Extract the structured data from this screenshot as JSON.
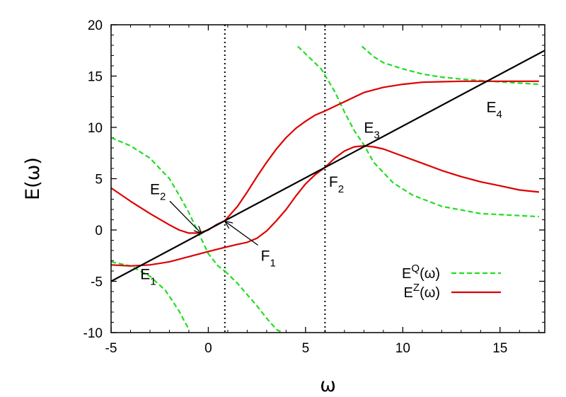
{
  "chart_data": {
    "type": "line",
    "xlabel": "ω",
    "ylabel": "E(ω)",
    "xlim": [
      -5,
      17.3
    ],
    "ylim": [
      -10,
      20
    ],
    "x_ticks": [
      -5,
      0,
      5,
      10,
      15
    ],
    "y_ticks": [
      -10,
      -5,
      0,
      5,
      10,
      15,
      20
    ],
    "grid": false,
    "legend_position": "bottom-right",
    "colors": {
      "EQ": "#22dd22",
      "EZ": "#dd0000",
      "diagonal": "#000000",
      "vlines": "#000000"
    },
    "vertical_lines": [
      0.85,
      6.0
    ],
    "series": [
      {
        "name": "E^Q(ω)",
        "legend": {
          "base": "E",
          "sup": "Q",
          "arg": "(ω)"
        },
        "style": "dashed",
        "color": "#22dd22",
        "branches": [
          {
            "x": [
              -5,
              -4,
              -3,
              -2,
              -1.5,
              -1,
              -0.5,
              0,
              0.5,
              0.85
            ],
            "y": [
              9.0,
              8.2,
              7.0,
              5.0,
              3.4,
              1.7,
              -0.3,
              -2.3,
              -3.5,
              -4.0
            ]
          },
          {
            "x": [
              0.85,
              1.5,
              2,
              2.5,
              3,
              3.5,
              3.8
            ],
            "y": [
              -4.0,
              -5.2,
              -6.3,
              -7.4,
              -8.6,
              -9.7,
              -10.0
            ]
          },
          {
            "x": [
              -5,
              -4,
              -3,
              -2.2,
              -1.5,
              -1.2,
              -1.05
            ],
            "y": [
              -3.1,
              -3.5,
              -4.5,
              -5.9,
              -7.9,
              -9.0,
              -9.5
            ]
          },
          {
            "x": [
              4.6,
              5.2,
              5.8,
              6.5,
              7,
              7.5,
              8,
              8.5,
              9.5,
              10.5,
              12,
              14,
              17
            ],
            "y": [
              17.9,
              16.8,
              15.7,
              13.5,
              11.5,
              9.7,
              8.3,
              6.6,
              4.6,
              3.4,
              2.3,
              1.6,
              1.3
            ]
          },
          {
            "x": [
              7.9,
              8.5,
              9,
              10,
              11,
              12,
              13,
              14.5,
              17
            ],
            "y": [
              17.9,
              16.9,
              16.3,
              15.7,
              15.2,
              14.9,
              14.7,
              14.5,
              14.2
            ]
          }
        ]
      },
      {
        "name": "E^Z(ω)",
        "legend": {
          "base": "E",
          "sup": "Z",
          "arg": "(ω)"
        },
        "style": "solid",
        "color": "#dd0000",
        "branches": [
          {
            "x": [
              -5,
              -4,
              -3,
              -2,
              -1.5,
              -1,
              -0.5,
              0,
              0.4,
              0.85,
              1.5,
              2,
              2.5,
              3,
              3.5,
              4,
              4.5,
              5,
              5.5,
              6,
              7,
              8,
              9,
              10,
              11,
              12,
              13,
              14,
              15,
              16,
              17
            ],
            "y": [
              4.1,
              2.8,
              1.6,
              0.5,
              0.0,
              -0.3,
              -0.3,
              0.0,
              0.5,
              0.9,
              2.3,
              3.7,
              5.2,
              6.6,
              7.9,
              9.0,
              9.9,
              10.6,
              11.2,
              11.6,
              12.5,
              13.4,
              13.9,
              14.2,
              14.4,
              14.45,
              14.5,
              14.5,
              14.5,
              14.5,
              14.5
            ]
          },
          {
            "x": [
              -5,
              -4,
              -3,
              -2,
              -1,
              0,
              0.85,
              1.5,
              2,
              2.5,
              3,
              3.5,
              4,
              4.5,
              5,
              5.5,
              6,
              6.5,
              7,
              7.5,
              8,
              8.5,
              9,
              10,
              11,
              12,
              13,
              14,
              15,
              16,
              17
            ],
            "y": [
              -3.4,
              -3.5,
              -3.4,
              -3.1,
              -2.6,
              -2.1,
              -1.7,
              -1.4,
              -1.2,
              -0.8,
              -0.1,
              0.9,
              2.0,
              3.3,
              4.5,
              5.4,
              6.1,
              7.0,
              7.7,
              8.1,
              8.2,
              8.1,
              7.9,
              7.2,
              6.5,
              5.8,
              5.2,
              4.7,
              4.3,
              3.9,
              3.7
            ]
          }
        ]
      },
      {
        "name": "",
        "style": "solid",
        "color": "#000000",
        "branches": [
          {
            "x": [
              -5,
              17.3
            ],
            "y": [
              -5,
              17.5
            ]
          }
        ]
      }
    ],
    "annotations": [
      {
        "base": "E",
        "sub": "1",
        "x": -3.5,
        "y": -4.8
      },
      {
        "base": "E",
        "sub": "2",
        "x": -3.0,
        "y": 3.5,
        "arrow_to": [
          -0.35,
          -0.35
        ]
      },
      {
        "base": "E",
        "sub": "3",
        "x": 8.0,
        "y": 9.5
      },
      {
        "base": "E",
        "sub": "4",
        "x": 14.3,
        "y": 11.5
      },
      {
        "base": "F",
        "sub": "1",
        "x": 2.7,
        "y": -3.0,
        "arrow_to": [
          0.85,
          0.85
        ]
      },
      {
        "base": "F",
        "sub": "2",
        "x": 6.2,
        "y": 4.2
      }
    ]
  }
}
